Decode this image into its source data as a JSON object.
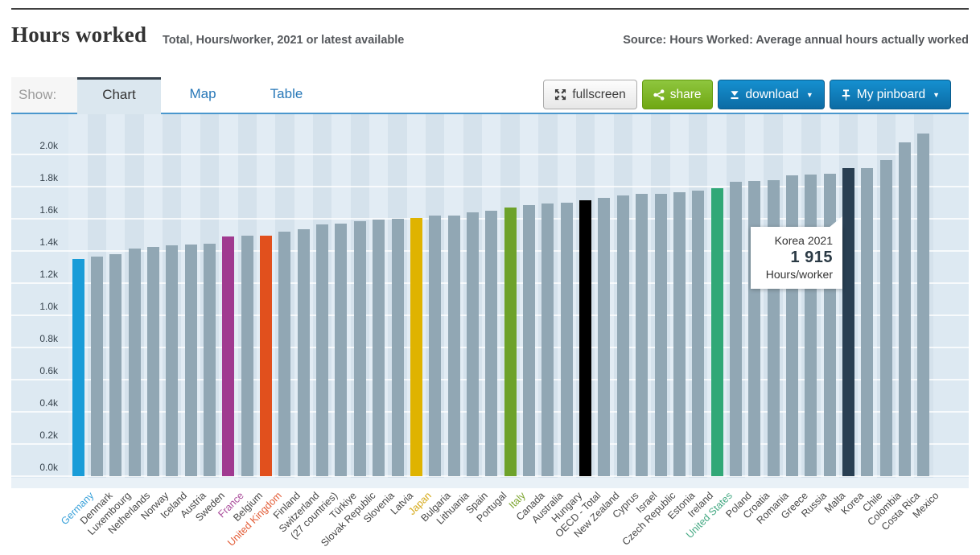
{
  "header": {
    "title": "Hours worked",
    "subtitle": "Total, Hours/worker, 2021 or latest available",
    "source": "Source: Hours Worked: Average annual hours actually worked"
  },
  "tabs": {
    "show_label": "Show:",
    "items": [
      {
        "label": "Chart",
        "active": true
      },
      {
        "label": "Map",
        "active": false
      },
      {
        "label": "Table",
        "active": false
      }
    ]
  },
  "toolbar": {
    "fullscreen_label": "fullscreen",
    "share_label": "share",
    "download_label": "download",
    "pinboard_label": "My pinboard",
    "caret": "▼"
  },
  "tooltip": {
    "title": "Korea 2021",
    "value": "1 915",
    "unit": "Hours/worker"
  },
  "colors": {
    "default_bar": "#91a7b4",
    "plot_bg": "#dde9f2",
    "accent_blue_button": "#0d76b0",
    "accent_green_button": "#7cb427",
    "tab_blue": "#2878b8"
  },
  "chart_data": {
    "type": "bar",
    "title": "Hours worked",
    "subtitle": "Total, Hours/worker, 2021 or latest available",
    "ylabel": "Hours/worker",
    "xlabel": "",
    "ylim": [
      0,
      2260
    ],
    "ytick_step": 200,
    "yticks": [
      "0.0k",
      "0.2k",
      "0.4k",
      "0.6k",
      "0.8k",
      "1.0k",
      "1.2k",
      "1.4k",
      "1.6k",
      "1.8k",
      "2.0k"
    ],
    "grid": true,
    "legend": false,
    "categories": [
      "Germany",
      "Denmark",
      "Luxembourg",
      "Netherlands",
      "Norway",
      "Iceland",
      "Austria",
      "Sweden",
      "France",
      "Belgium",
      "United Kingdom",
      "Finland",
      "Switzerland",
      "(27 countries)",
      "Türkiye",
      "Slovak Republic",
      "Slovenia",
      "Latvia",
      "Japan",
      "Bulgaria",
      "Lithuania",
      "Spain",
      "Portugal",
      "Italy",
      "Canada",
      "Australia",
      "Hungary",
      "OECD - Total",
      "New Zealand",
      "Cyprus",
      "Israel",
      "Czech Republic",
      "Estonia",
      "Ireland",
      "United States",
      "Poland",
      "Croatia",
      "Romania",
      "Greece",
      "Russia",
      "Malta",
      "Korea",
      "Chile",
      "Colombia",
      "Costa Rica",
      "Mexico"
    ],
    "values": [
      1349,
      1363,
      1382,
      1417,
      1427,
      1433,
      1442,
      1444,
      1490,
      1493,
      1497,
      1518,
      1533,
      1566,
      1572,
      1583,
      1596,
      1601,
      1607,
      1619,
      1620,
      1641,
      1649,
      1669,
      1685,
      1694,
      1700,
      1716,
      1730,
      1745,
      1753,
      1754,
      1767,
      1775,
      1791,
      1830,
      1835,
      1838,
      1872,
      1874,
      1882,
      1915,
      1916,
      1964,
      2073,
      2128
    ],
    "bar_colors": {
      "Germany": "#199cd8",
      "France": "#a03a90",
      "United Kingdom": "#e1501d",
      "Japan": "#dfb300",
      "Italy": "#6da22a",
      "OECD - Total": "#000000",
      "United States": "#31a877",
      "Korea": "#293f52"
    },
    "label_colors": {
      "Germany": "#3ba2da",
      "France": "#aa4d9b",
      "United Kingdom": "#e25b35",
      "Japan": "#d5a918",
      "Italy": "#7da530",
      "United States": "#44a983"
    }
  }
}
